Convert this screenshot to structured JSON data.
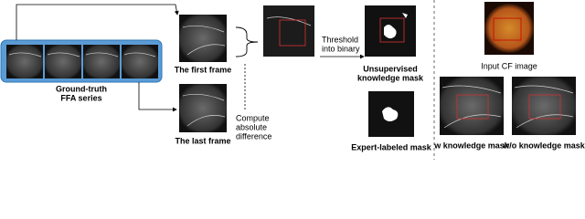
{
  "series_panel": {
    "label_lines": [
      "Ground-truth",
      "FFA series"
    ]
  },
  "first_frame": {
    "label": "The first frame"
  },
  "last_frame": {
    "label": "The last frame"
  },
  "difference_step": {
    "label_lines": [
      "Compute",
      "absolute",
      "difference"
    ]
  },
  "threshold_step": {
    "label_lines": [
      "Threshold",
      "into binary"
    ]
  },
  "unsupervised_mask": {
    "label_lines": [
      "Unsupervised",
      "knowledge mask"
    ]
  },
  "expert_mask": {
    "label": "Expert-labeled mask"
  },
  "cf_image": {
    "label": "Input CF image"
  },
  "with_mask_result": {
    "label": "w knowledge mask"
  },
  "without_mask_result": {
    "label": "w/o knowledge mask"
  }
}
